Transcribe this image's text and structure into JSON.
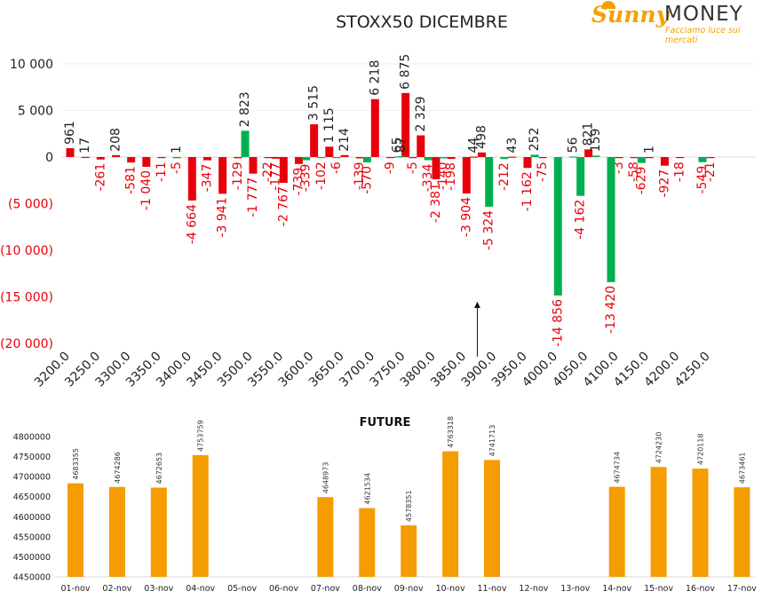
{
  "logo": {
    "word1": "Sunny",
    "word2": "MONEY",
    "tagline": "Facciamo luce sui mercati"
  },
  "chart_data": [
    {
      "type": "bar",
      "title": "STOXX50 DICEMBRE",
      "xlabel": "",
      "ylabel": "",
      "ylim": [
        -20000,
        10000
      ],
      "y_ticks": [
        10000,
        5000,
        0,
        -5000,
        -10000,
        -15000,
        -20000
      ],
      "y_tick_labels": [
        "10 000",
        "5 000",
        "0",
        "(5 000)",
        "(10 000)",
        "(15 000)",
        "(20 000)"
      ],
      "x_tick_labels": [
        "3200.0",
        "3250.0",
        "3300.0",
        "3350.0",
        "3400.0",
        "3450.0",
        "3500.0",
        "3550.0",
        "3600.0",
        "3650.0",
        "3700.0",
        "3750.0",
        "3800.0",
        "3850.0",
        "3900.0",
        "3950.0",
        "4000.0",
        "4050.0",
        "4100.0",
        "4150.0",
        "4200.0",
        "4250.0"
      ],
      "colors": {
        "red_series": "#e8000b",
        "green_series": "#00b050"
      },
      "annotation": "arrow pointing up near strike 3875",
      "series": [
        {
          "key": "red",
          "points": [
            {
              "strike": 3200,
              "value": 961,
              "label": "961"
            },
            {
              "strike": 3225,
              "value": 17,
              "label": "17"
            },
            {
              "strike": 3250,
              "value": -261,
              "label": "-261"
            },
            {
              "strike": 3275,
              "value": 208,
              "label": "208"
            },
            {
              "strike": 3300,
              "value": -581,
              "label": "-581"
            },
            {
              "strike": 3325,
              "value": -1040,
              "label": "-1 040"
            },
            {
              "strike": 3350,
              "value": -11,
              "label": "-11"
            },
            {
              "strike": 3375,
              "value": -5,
              "label": "-5"
            },
            {
              "strike": 3400,
              "value": -4664,
              "label": "-4 664"
            },
            {
              "strike": 3425,
              "value": -347,
              "label": "-347"
            },
            {
              "strike": 3450,
              "value": -3941,
              "label": "-3 941"
            },
            {
              "strike": 3475,
              "value": -129,
              "label": "-129"
            },
            {
              "strike": 3500,
              "value": -1777,
              "label": "-1 777"
            },
            {
              "strike": 3525,
              "value": -22,
              "label": "-22"
            },
            {
              "strike": 3537,
              "value": -177,
              "label": "-177"
            },
            {
              "strike": 3550,
              "value": -2767,
              "label": "-2 767"
            },
            {
              "strike": 3575,
              "value": -739,
              "label": "-739"
            },
            {
              "strike": 3600,
              "value": 3515,
              "label": "3 515"
            },
            {
              "strike": 3625,
              "value": 1115,
              "label": "1 115"
            },
            {
              "strike": 3650,
              "value": 214,
              "label": "214"
            },
            {
              "strike": 3675,
              "value": -139,
              "label": "-139"
            },
            {
              "strike": 3700,
              "value": 6218,
              "label": "6 218"
            },
            {
              "strike": 3725,
              "value": -9,
              "label": "-9"
            },
            {
              "strike": 3750,
              "value": 6875,
              "label": "6 875"
            },
            {
              "strike": 3762,
              "value": -5,
              "label": "-5"
            },
            {
              "strike": 3775,
              "value": 2329,
              "label": "2 329"
            },
            {
              "strike": 3800,
              "value": -2381,
              "label": "-2 381"
            },
            {
              "strike": 3825,
              "value": -198,
              "label": "-198"
            },
            {
              "strike": 3850,
              "value": -3904,
              "label": "-3 904"
            },
            {
              "strike": 3862,
              "value": 44,
              "label": "44"
            },
            {
              "strike": 3875,
              "value": 498,
              "label": "498"
            },
            {
              "strike": 3925,
              "value": 43,
              "label": "43"
            },
            {
              "strike": 3950,
              "value": -1162,
              "label": "-1 162"
            },
            {
              "strike": 3975,
              "value": -75,
              "label": "-75"
            },
            {
              "strike": 4050,
              "value": 821,
              "label": "821"
            },
            {
              "strike": 4100,
              "value": -3,
              "label": "-3"
            },
            {
              "strike": 4125,
              "value": -58,
              "label": "-58"
            },
            {
              "strike": 4150,
              "value": 1,
              "label": "1"
            },
            {
              "strike": 4175,
              "value": -927,
              "label": "-927"
            },
            {
              "strike": 4200,
              "value": -18,
              "label": "-18"
            },
            {
              "strike": 4250,
              "value": -21,
              "label": "-21"
            }
          ]
        },
        {
          "key": "green",
          "points": [
            {
              "strike": 3375,
              "value": 1,
              "label": "1"
            },
            {
              "strike": 3487,
              "value": 2823,
              "label": "2 823"
            },
            {
              "strike": 3587,
              "value": -339,
              "label": "-339"
            },
            {
              "strike": 3612,
              "value": -102,
              "label": "-102"
            },
            {
              "strike": 3637,
              "value": -6,
              "label": "-6"
            },
            {
              "strike": 3687,
              "value": -570,
              "label": "-570"
            },
            {
              "strike": 3737,
              "value": 65,
              "label": "65"
            },
            {
              "strike": 3743,
              "value": 87,
              "label": "87"
            },
            {
              "strike": 3787,
              "value": -334,
              "label": "-334"
            },
            {
              "strike": 3812,
              "value": -140,
              "label": "-140"
            },
            {
              "strike": 3887,
              "value": -5324,
              "label": "-5 324"
            },
            {
              "strike": 3912,
              "value": -212,
              "label": "-212"
            },
            {
              "strike": 3962,
              "value": 252,
              "label": "252"
            },
            {
              "strike": 4000,
              "value": -14856,
              "label": "-14 856"
            },
            {
              "strike": 4025,
              "value": 56,
              "label": "56"
            },
            {
              "strike": 4037,
              "value": -4162,
              "label": "-4 162"
            },
            {
              "strike": 4062,
              "value": 159,
              "label": "159"
            },
            {
              "strike": 4087,
              "value": -13420,
              "label": "-13 420"
            },
            {
              "strike": 4137,
              "value": -629,
              "label": "-629"
            },
            {
              "strike": 4237,
              "value": -549,
              "label": "-549"
            }
          ]
        }
      ]
    },
    {
      "type": "bar",
      "title": "FUTURE",
      "xlabel": "",
      "ylabel": "",
      "ylim": [
        4450000,
        4800000
      ],
      "y_ticks": [
        4800000,
        4750000,
        4700000,
        4650000,
        4600000,
        4550000,
        4500000,
        4450000
      ],
      "y_tick_labels": [
        "4800000",
        "4750000",
        "4700000",
        "4650000",
        "4600000",
        "4550000",
        "4500000",
        "4450000"
      ],
      "categories": [
        "01-nov",
        "02-nov",
        "03-nov",
        "04-nov",
        "05-nov",
        "06-nov",
        "07-nov",
        "08-nov",
        "09-nov",
        "10-nov",
        "11-nov",
        "12-nov",
        "13-nov",
        "14-nov",
        "15-nov",
        "16-nov",
        "17-nov"
      ],
      "values": [
        4683355,
        4674286,
        4672653,
        4753759,
        null,
        null,
        4648973,
        4621534,
        4578351,
        4763318,
        4741713,
        null,
        null,
        4674734,
        4724230,
        4720118,
        4673461
      ],
      "value_labels": [
        "4683355",
        "4674286",
        "4672653",
        "4753759",
        "",
        "",
        "4648973",
        "4621534",
        "4578351",
        "4763318",
        "4741713",
        "",
        "",
        "4674734",
        "4724230",
        "4720118",
        "4673461"
      ],
      "color": "#f59c00"
    }
  ]
}
